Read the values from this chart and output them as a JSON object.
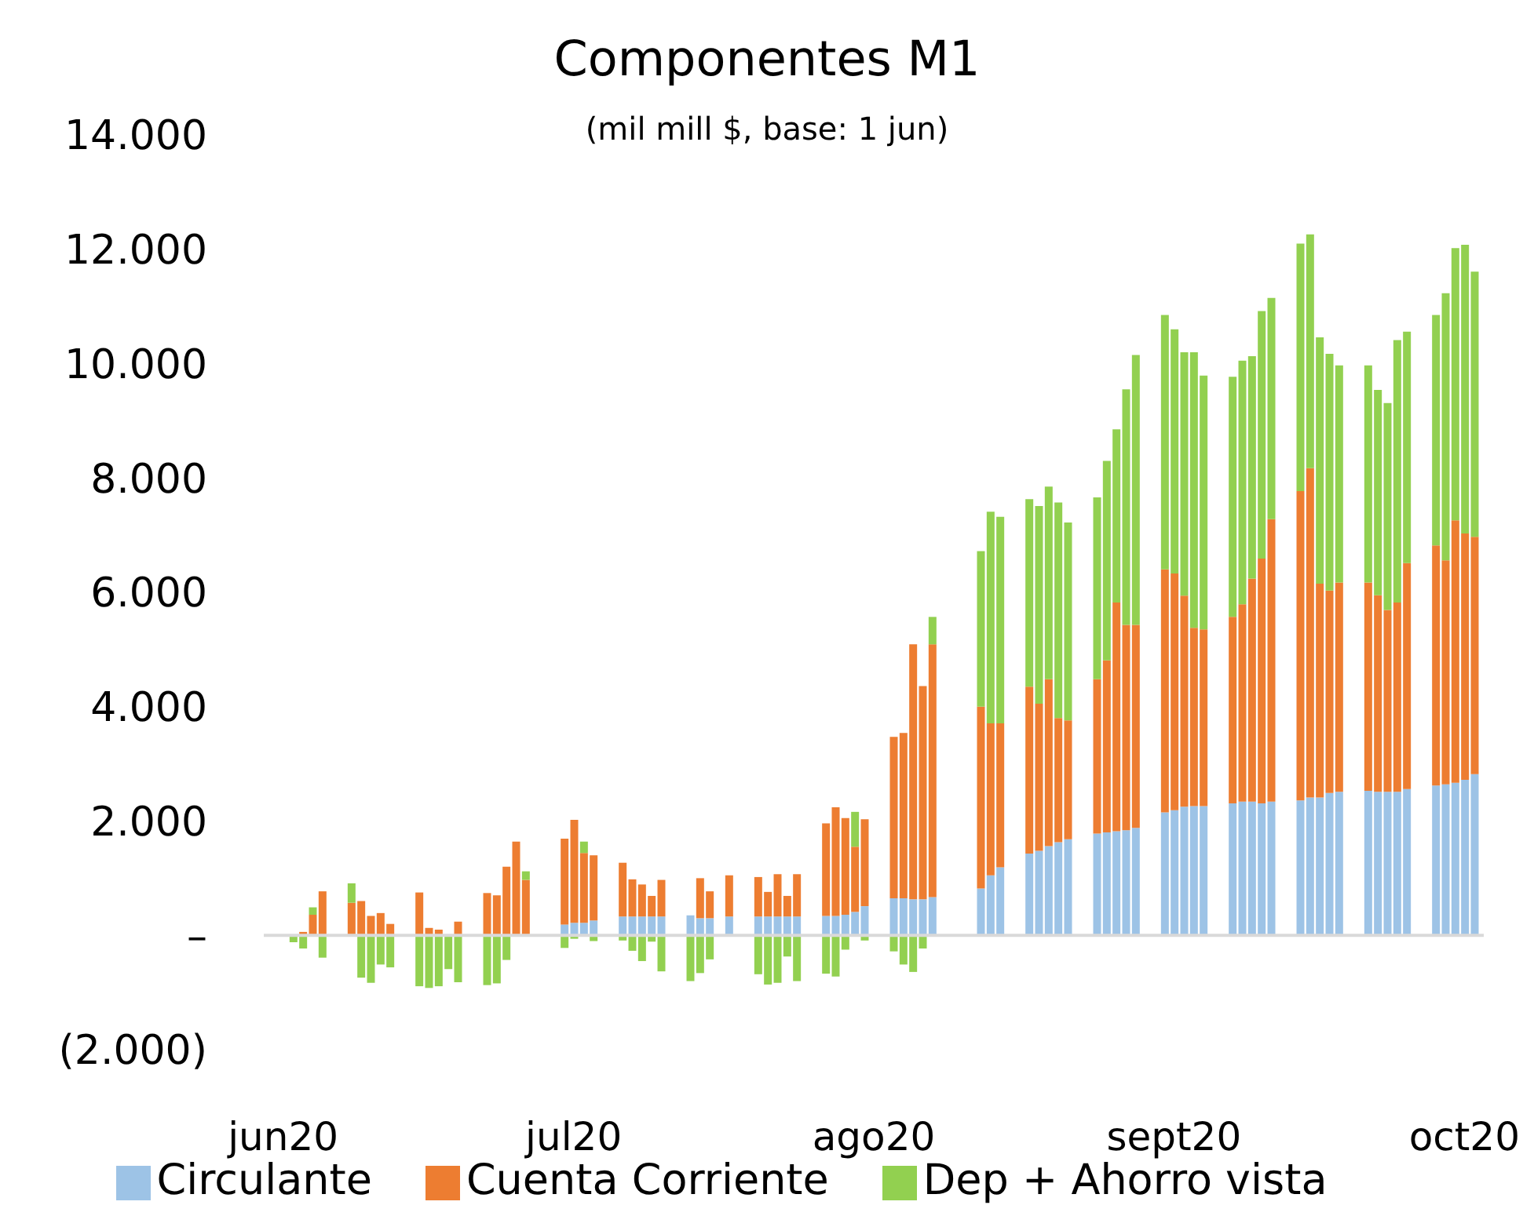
{
  "chart_data": {
    "type": "bar",
    "title": "Componentes M1",
    "subtitle": "(mil mill $, base: 1 jun)",
    "stacked": true,
    "legend": "bottom",
    "x": [
      "2020-06-02",
      "2020-06-03",
      "2020-06-04",
      "2020-06-05",
      "2020-06-08",
      "2020-06-09",
      "2020-06-10",
      "2020-06-11",
      "2020-06-12",
      "2020-06-15",
      "2020-06-16",
      "2020-06-17",
      "2020-06-18",
      "2020-06-19",
      "2020-06-22",
      "2020-06-23",
      "2020-06-24",
      "2020-06-25",
      "2020-06-26",
      "2020-06-30",
      "2020-07-01",
      "2020-07-02",
      "2020-07-03",
      "2020-07-06",
      "2020-07-07",
      "2020-07-08",
      "2020-07-09",
      "2020-07-10",
      "2020-07-13",
      "2020-07-14",
      "2020-07-15",
      "2020-07-17",
      "2020-07-20",
      "2020-07-21",
      "2020-07-22",
      "2020-07-23",
      "2020-07-24",
      "2020-07-27",
      "2020-07-28",
      "2020-07-29",
      "2020-07-30",
      "2020-07-31",
      "2020-08-03",
      "2020-08-04",
      "2020-08-05",
      "2020-08-06",
      "2020-08-07",
      "2020-08-12",
      "2020-08-13",
      "2020-08-14",
      "2020-08-17",
      "2020-08-18",
      "2020-08-19",
      "2020-08-20",
      "2020-08-21",
      "2020-08-24",
      "2020-08-25",
      "2020-08-26",
      "2020-08-27",
      "2020-08-28",
      "2020-08-31",
      "2020-09-01",
      "2020-09-02",
      "2020-09-03",
      "2020-09-04",
      "2020-09-07",
      "2020-09-08",
      "2020-09-09",
      "2020-09-10",
      "2020-09-11",
      "2020-09-14",
      "2020-09-15",
      "2020-09-16",
      "2020-09-17",
      "2020-09-18",
      "2020-09-21",
      "2020-09-22",
      "2020-09-23",
      "2020-09-24",
      "2020-09-25",
      "2020-09-28",
      "2020-09-29",
      "2020-09-30",
      "2020-10-01",
      "2020-10-02"
    ],
    "series": [
      {
        "name": "Circulante",
        "color": "#9dc3e6",
        "values": [
          null,
          null,
          null,
          null,
          null,
          null,
          null,
          null,
          null,
          null,
          null,
          null,
          null,
          null,
          null,
          null,
          null,
          null,
          null,
          190,
          220,
          220,
          260,
          330,
          330,
          330,
          330,
          330,
          350,
          300,
          300,
          330,
          330,
          330,
          330,
          330,
          330,
          340,
          340,
          360,
          410,
          510,
          650,
          650,
          630,
          630,
          670,
          820,
          1050,
          1190,
          1430,
          1480,
          1560,
          1630,
          1680,
          1780,
          1800,
          1820,
          1840,
          1880,
          2150,
          2190,
          2250,
          2260,
          2260,
          2310,
          2340,
          2340,
          2310,
          2340,
          2360,
          2410,
          2410,
          2490,
          2510,
          2530,
          2510,
          2510,
          2510,
          2560,
          2620,
          2640,
          2670,
          2720,
          2820
        ]
      },
      {
        "name": "Cuenta Corriente",
        "color": "#ed7d31",
        "values": [
          null,
          60,
          360,
          770,
          570,
          600,
          340,
          390,
          200,
          750,
          130,
          100,
          0,
          240,
          740,
          700,
          1200,
          1640,
          970,
          1500,
          1800,
          1220,
          1140,
          940,
          650,
          560,
          360,
          640,
          0,
          700,
          470,
          720,
          690,
          430,
          740,
          360,
          740,
          1620,
          1900,
          1690,
          1140,
          1520,
          2820,
          2890,
          4460,
          3730,
          4420,
          3180,
          2660,
          2520,
          2920,
          2570,
          2920,
          2170,
          2080,
          2700,
          3010,
          4000,
          3590,
          3550,
          4250,
          4140,
          3690,
          3120,
          3090,
          3260,
          3450,
          3900,
          4280,
          4940,
          5410,
          5760,
          3740,
          3540,
          3660,
          3640,
          3440,
          3180,
          3310,
          3950,
          4200,
          3920,
          4590,
          4310,
          4150
        ]
      },
      {
        "name": "Dep + Ahorro vista",
        "color": "#92d050",
        "values": [
          -120,
          -230,
          130,
          -390,
          340,
          -740,
          -830,
          -510,
          -560,
          -890,
          -920,
          -890,
          -590,
          -820,
          -870,
          -840,
          -430,
          0,
          150,
          -220,
          -60,
          200,
          -100,
          -90,
          -270,
          -450,
          -110,
          -630,
          -800,
          -660,
          -420,
          0,
          -680,
          -860,
          -830,
          -370,
          -800,
          -670,
          -720,
          -250,
          610,
          -90,
          -280,
          -510,
          -640,
          -230,
          480,
          2720,
          3700,
          3610,
          3280,
          3460,
          3370,
          3770,
          3460,
          3180,
          3490,
          3030,
          4120,
          4720,
          4450,
          4270,
          4260,
          4820,
          4440,
          4200,
          4260,
          3890,
          4330,
          3870,
          4330,
          4090,
          4310,
          4140,
          3800,
          3800,
          3590,
          3620,
          4590,
          4050,
          4030,
          4670,
          4760,
          5050,
          4640
        ]
      }
    ],
    "xlim": [
      "2020-05-30",
      "2020-10-03"
    ],
    "xticks": [
      {
        "value": "2020-06-01",
        "label": "jun20"
      },
      {
        "value": "2020-07-01",
        "label": "jul20"
      },
      {
        "value": "2020-08-01",
        "label": "ago20"
      },
      {
        "value": "2020-09-01",
        "label": "sept20"
      },
      {
        "value": "2020-10-01",
        "label": "oct20"
      }
    ],
    "ylim": [
      -2000,
      14000
    ],
    "yticks": [
      {
        "value": -2000,
        "label": "(2.000)"
      },
      {
        "value": 0,
        "label": "–"
      },
      {
        "value": 2000,
        "label": "2.000"
      },
      {
        "value": 4000,
        "label": "4.000"
      },
      {
        "value": 6000,
        "label": "6.000"
      },
      {
        "value": 8000,
        "label": "8.000"
      },
      {
        "value": 10000,
        "label": "10.000"
      },
      {
        "value": 12000,
        "label": "12.000"
      },
      {
        "value": 14000,
        "label": "14.000"
      }
    ],
    "ref_lines": [
      {
        "axis": "y",
        "value": 0,
        "color": "#d9d9d9"
      }
    ]
  }
}
